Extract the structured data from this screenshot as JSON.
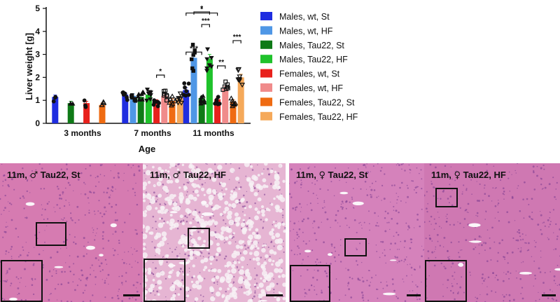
{
  "chart_data": {
    "type": "bar",
    "ylabel": "Liver weight [g]",
    "xlabel": "Age",
    "ylim": [
      0,
      5
    ],
    "yticks": [
      0,
      1,
      2,
      3,
      4,
      5
    ],
    "categories": [
      "3 months",
      "7 months",
      "11 months"
    ],
    "legend_position": "right",
    "series": [
      {
        "name": "Males, wt, St",
        "color": "#1f2de0",
        "marker": "circle",
        "values": [
          1.15,
          1.25,
          1.45
        ]
      },
      {
        "name": "Males, wt, HF",
        "color": "#4f97e6",
        "marker": "square",
        "values": [
          null,
          1.2,
          2.85
        ]
      },
      {
        "name": "Males, Tau22, St",
        "color": "#0f7a17",
        "marker": "triangle",
        "values": [
          0.88,
          1.15,
          1.1
        ]
      },
      {
        "name": "Males, Tau22, HF",
        "color": "#1fc22b",
        "marker": "triangle-down",
        "values": [
          null,
          1.25,
          2.8
        ]
      },
      {
        "name": "Females, wt, St",
        "color": "#e8211c",
        "marker": "circle",
        "values": [
          0.88,
          0.95,
          1.05
        ]
      },
      {
        "name": "Females, wt, HF",
        "color": "#f08b8b",
        "marker": "square-open",
        "values": [
          null,
          1.2,
          1.5
        ]
      },
      {
        "name": "Females, Tau22, St",
        "color": "#ef6b12",
        "marker": "triangle-open",
        "values": [
          0.8,
          0.98,
          0.95
        ]
      },
      {
        "name": "Females, Tau22, HF",
        "color": "#f5a95a",
        "marker": "triangle-down-open",
        "values": [
          null,
          1.1,
          2.0
        ]
      }
    ],
    "annotations": [
      "*",
      "*",
      "***",
      "***",
      "*",
      "**",
      "***"
    ]
  },
  "micrographs": {
    "panels": [
      {
        "tiles": [
          {
            "label_pre": "11m, ",
            "sex_symbol": "♂",
            "label_post": " Tau22, St",
            "tone": "#d67bb1"
          },
          {
            "label_pre": "11m, ",
            "sex_symbol": "♂",
            "label_post": " Tau22, HF",
            "tone": "#e6b5d3"
          }
        ]
      },
      {
        "tiles": [
          {
            "label_pre": "11m, ",
            "sex_symbol": "♀",
            "label_post": " Tau22, St",
            "tone": "#d582bb"
          },
          {
            "label_pre": "11m, ",
            "sex_symbol": "♀",
            "label_post": " Tau22, HF",
            "tone": "#cf78b2"
          }
        ]
      }
    ]
  }
}
